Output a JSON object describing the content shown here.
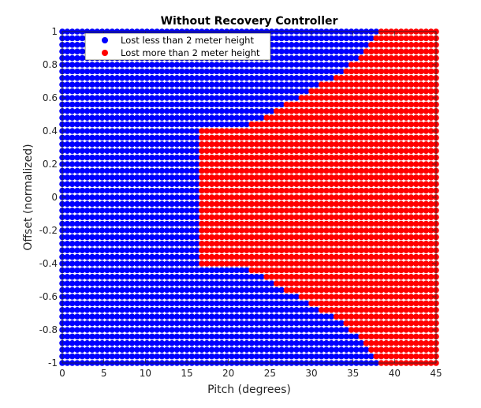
{
  "chart_data": {
    "type": "scatter",
    "title": "Without Recovery Controller",
    "xlabel": "Pitch (degrees)",
    "ylabel": "Offset (normalized)",
    "xlim": [
      0,
      45
    ],
    "ylim": [
      -1,
      1
    ],
    "xticks": [
      "0",
      "5",
      "10",
      "15",
      "20",
      "25",
      "30",
      "35",
      "40",
      "45"
    ],
    "yticks": [
      "-1",
      "-0.8",
      "-0.6",
      "-0.4",
      "-0.2",
      "0",
      "0.2",
      "0.4",
      "0.6",
      "0.8",
      "1"
    ],
    "grid": false,
    "legend_position": "top-left",
    "grid_sampling": {
      "pitch": {
        "start": 0,
        "stop": 45,
        "step": 0.6
      },
      "offset": {
        "start": -1,
        "stop": 1,
        "step": 0.04
      }
    },
    "series": [
      {
        "name": "Lost less than 2 meter height",
        "color": "#0000ff",
        "region": "default / outside the failure region"
      },
      {
        "name": "Lost more than 2 meter height",
        "color": "#ff0000",
        "region": "all points with pitch >= 38; plus the wedge between pitch 16.5 and 38 bounded by |offset| <= envelope(pitch)",
        "envelope": {
          "pitch": [
            16.5,
            18,
            19,
            20,
            21,
            22,
            23,
            24,
            25,
            26,
            27,
            28,
            29,
            30,
            31,
            32,
            33,
            34,
            35,
            36,
            37,
            38
          ],
          "max_abs_offset": [
            0.4,
            0.41,
            0.41,
            0.41,
            0.42,
            0.43,
            0.45,
            0.47,
            0.5,
            0.53,
            0.56,
            0.59,
            0.62,
            0.65,
            0.68,
            0.71,
            0.73,
            0.76,
            0.81,
            0.86,
            0.93,
            1.0
          ]
        }
      }
    ]
  }
}
